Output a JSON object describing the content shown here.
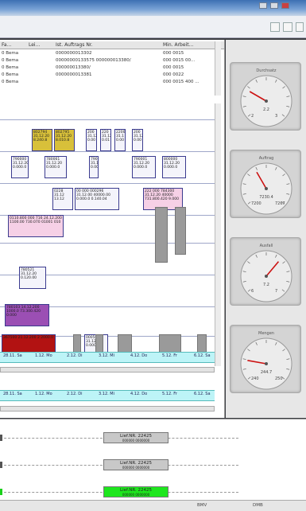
{
  "grid": {
    "columns": [
      "Fa...",
      "Lei...",
      "Ist. Auftrags Nr.",
      "Min. Arbeit..."
    ],
    "rows": [
      [
        "0 Bema",
        "",
        "0000000013302",
        "000 0015"
      ],
      [
        "0 Bema",
        "",
        "00000000133575 000000013380/",
        "000 0015 00..."
      ],
      [
        "0 Bema",
        "",
        "000000013380/",
        "000 0015"
      ],
      [
        "0 Bema",
        "",
        "0000000013381",
        "000 0022"
      ],
      [
        "0 Bema",
        "",
        "",
        "000 0015 400 ..."
      ]
    ]
  },
  "gantt": {
    "timeline_labels": [
      "28.11. Sa",
      "1.12. Mo",
      "2.12. Di",
      "3.12. Mi",
      "4.12. Do",
      "5.12. Fr",
      "6.12. Sa"
    ],
    "timeline2_labels": [
      "28.11. Sa",
      "1.12. Mo",
      "2.12. Di",
      "3.12. Mi",
      "4.12. Do",
      "5.12. Fr",
      "6.12. Sa"
    ],
    "bars": [
      {
        "text": "802794 31.12.20 8.240.8",
        "style": "yellow"
      },
      {
        "text": "802795 31.12.20 8.010.8",
        "style": "yellow"
      },
      {
        "text": "200 31.12 0.00",
        "style": "white"
      },
      {
        "text": "220 31.12 0.01",
        "style": "white"
      },
      {
        "text": "2200 31.1 0.00",
        "style": "white"
      },
      {
        "text": "200 31.12 0.00",
        "style": "white"
      },
      {
        "text": "790000 31.12.20 0.000.0",
        "style": "white"
      },
      {
        "text": "780061 31.12.20 0.000.0",
        "style": "white"
      },
      {
        "text": "790 31.12 0.00",
        "style": "white"
      },
      {
        "text": "790001 31.12.20 0.000.0",
        "style": "white"
      },
      {
        "text": "800000 31.12.20 0.000.0",
        "style": "white"
      },
      {
        "text": "0228 31.12 13.12",
        "style": "white"
      },
      {
        "text": "00 000 000296 31.12.00 40000.00 0.000.0 0.140.04",
        "style": "white"
      },
      {
        "text": "222 000 784300 31.12.20 40000 731.800.420 9.000",
        "style": "pink"
      },
      {
        "text": "0110.800 000 716 24.12.200 1100.00 730.070 01001 010",
        "style": "pink"
      },
      {
        "text": "780521 31.12.20 0.120.00",
        "style": "white"
      },
      {
        "text": "780103 14.12.200 1000.0 73.300.420 0.000",
        "style": "purple"
      },
      {
        "text": "367500 21.12.200 2 2000.0",
        "style": "red"
      },
      {
        "text": "000500 31.12.20 0.000.0",
        "style": "white"
      }
    ]
  },
  "lower": {
    "tracks": [
      {
        "label": "Lief.NR. 22425",
        "sub": "000000 0000000",
        "active": false
      },
      {
        "label": "Lief.NR. 22425",
        "sub": "000000 0000000",
        "active": false
      },
      {
        "label": "Lief.NR. 22425",
        "sub": "000000 0000000",
        "active": true
      }
    ]
  },
  "gauges": [
    {
      "title": "Durchsatz",
      "value": "2.2",
      "min": "2",
      "max": "3",
      "needle_deg": -60
    },
    {
      "title": "Auftrag",
      "value": "7230.4",
      "min": "7200",
      "max": "7267",
      "needle_deg": -30
    },
    {
      "title": "Ausfall",
      "value": "7.2",
      "min": "6",
      "max": "7",
      "needle_deg": 40
    },
    {
      "title": "Mengen",
      "value": "244.7",
      "min": "240",
      "max": "250",
      "needle_deg": -80
    }
  ],
  "status": {
    "left": "",
    "right1": "BMV",
    "right2": "DMB"
  },
  "colors": {
    "timeline_bg": "#bdf4f7",
    "active_track": "#1ee61e",
    "needle": "#cc1111"
  }
}
